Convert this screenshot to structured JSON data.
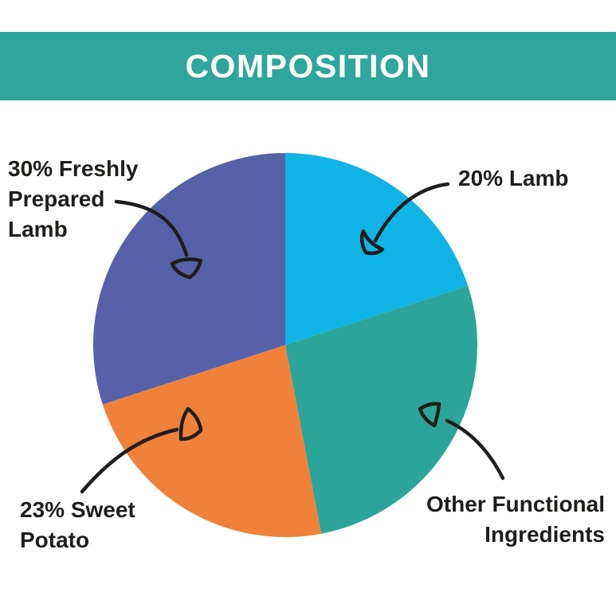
{
  "header": {
    "title": "COMPOSITION",
    "background_color": "#2EA69C",
    "text_color": "#FFFFFF"
  },
  "chart_data": {
    "type": "pie",
    "title": "COMPOSITION",
    "direction": "clockwise",
    "start_angle_clockwise_from_top_deg": 0,
    "slices": [
      {
        "label": "20% Lamb",
        "value_pct": 20,
        "color": "#10B4E4"
      },
      {
        "label": "Other Functional Ingredients",
        "value_pct": 27,
        "color": "#2BA49A"
      },
      {
        "label": "23% Sweet Potato",
        "value_pct": 23,
        "color": "#F0813B"
      },
      {
        "label": "30% Freshly Prepared Lamb",
        "value_pct": 30,
        "color": "#5661A8"
      }
    ],
    "legend": "none",
    "note": "Percentage for Other Functional Ingredients is not printed; value is the remainder of 100%."
  },
  "callouts": {
    "freshly_prepared_lamb": "30% Freshly\nPrepared\nLamb",
    "lamb": "20% Lamb",
    "sweet_potato": "23% Sweet\nPotato",
    "other_functional": "Other Functional\nIngredients"
  },
  "arrow_color": "#1e1e1c"
}
